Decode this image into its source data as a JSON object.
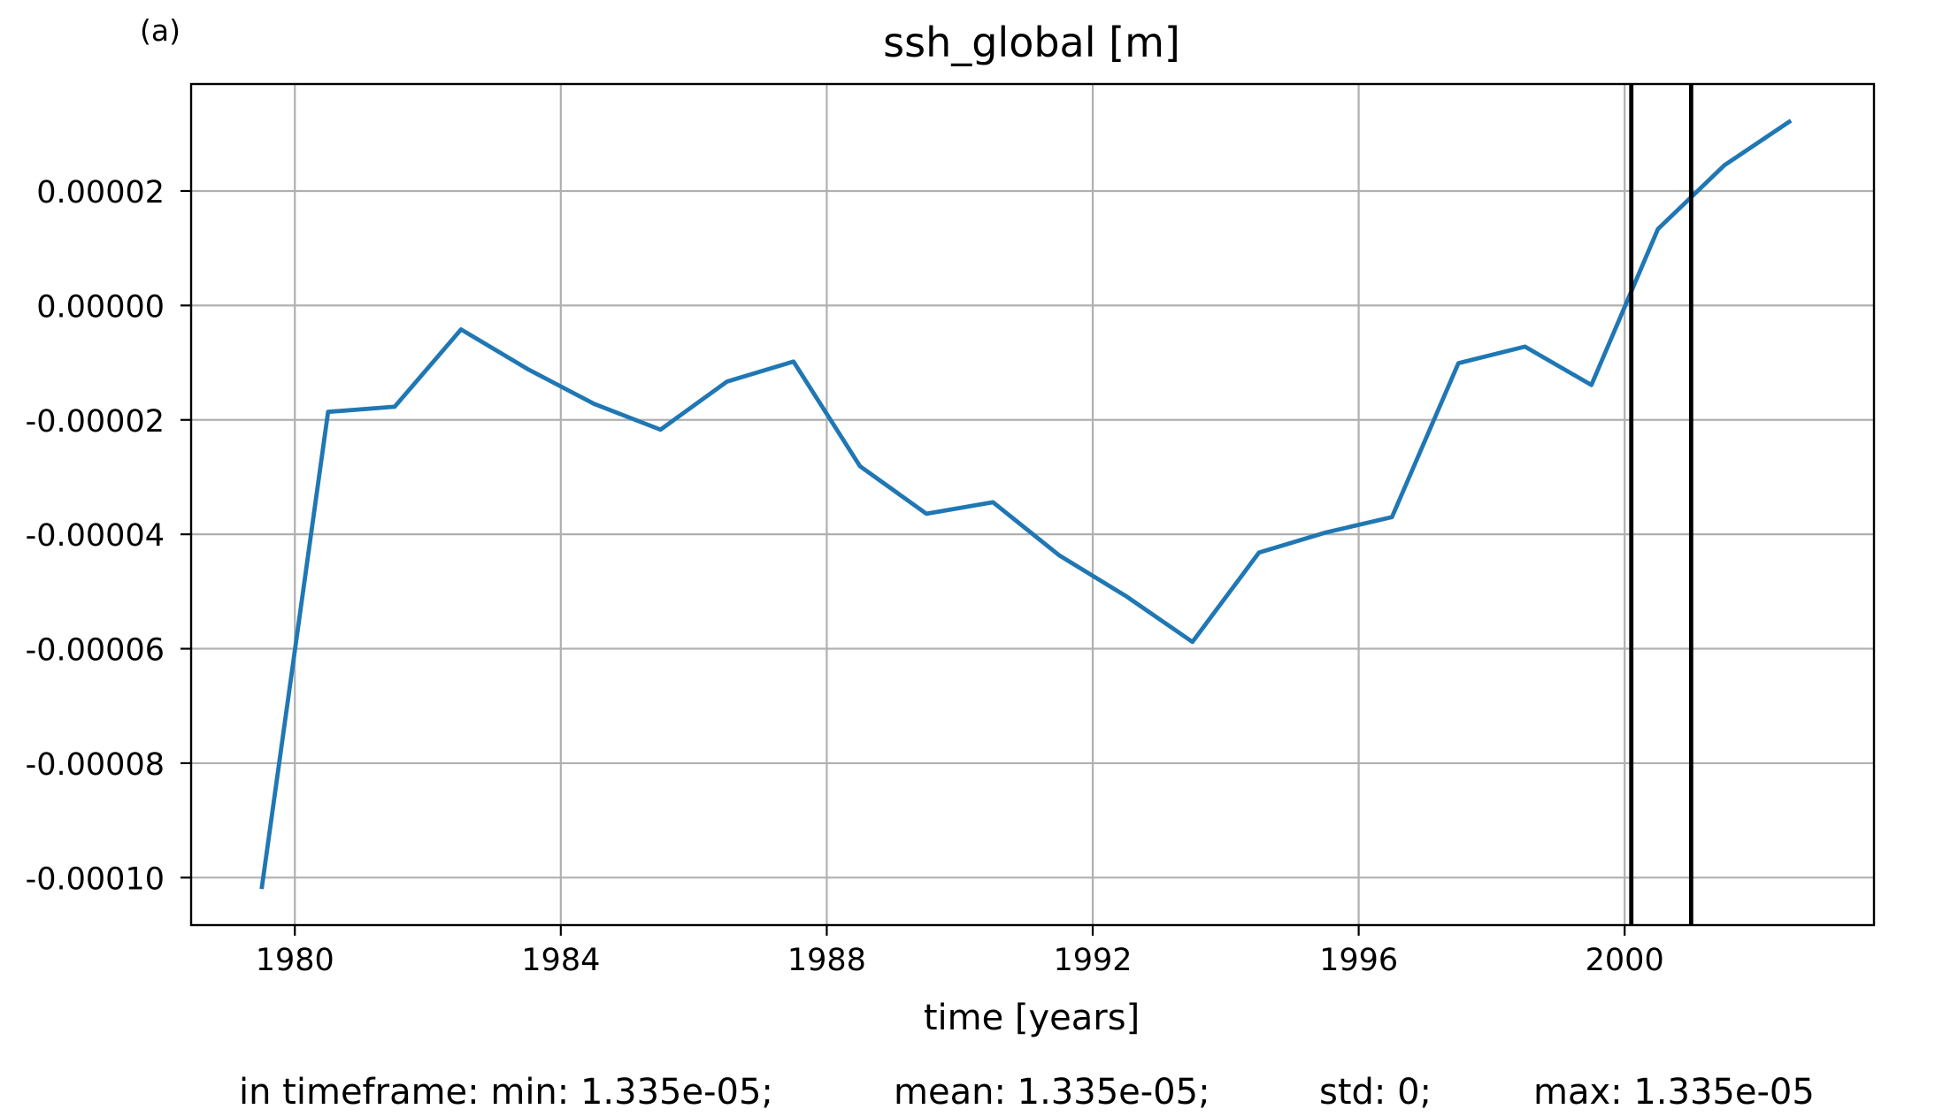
{
  "panel_label": "(a)",
  "chart_data": {
    "type": "line",
    "title": "ssh_global [m]",
    "xlabel": "time [years]",
    "ylabel": "",
    "xlim": [
      1978.44,
      2003.75
    ],
    "ylim": [
      -0.0001083,
      3.87e-05
    ],
    "grid": true,
    "x_ticks": [
      1980,
      1984,
      1988,
      1992,
      1996,
      2000
    ],
    "x_tick_labels": [
      "1980",
      "1984",
      "1988",
      "1992",
      "1996",
      "2000"
    ],
    "y_ticks": [
      -0.0001,
      -8e-05,
      -6e-05,
      -4e-05,
      -2e-05,
      0.0,
      2e-05
    ],
    "y_tick_labels": [
      "-0.00010",
      "-0.00008",
      "-0.00006",
      "-0.00004",
      "-0.00002",
      "0.00000",
      "0.00002"
    ],
    "series": [
      {
        "color": "#1f77b4",
        "x": [
          1979.5,
          1980.5,
          1981.5,
          1982.5,
          1983.5,
          1984.5,
          1985.5,
          1986.5,
          1987.5,
          1988.5,
          1989.5,
          1990.5,
          1991.5,
          1992.5,
          1993.5,
          1994.5,
          1995.5,
          1996.5,
          1997.5,
          1998.5,
          1999.5,
          2000.5,
          2001.5,
          2002.5
        ],
        "y": [
          -0.000102,
          -1.86e-05,
          -1.77e-05,
          -4.2e-06,
          -1.11e-05,
          -1.72e-05,
          -2.17e-05,
          -1.33e-05,
          -9.8e-06,
          -2.81e-05,
          -3.64e-05,
          -3.44e-05,
          -4.37e-05,
          -5.08e-05,
          -5.88e-05,
          -4.32e-05,
          -3.97e-05,
          -3.7e-05,
          -1.01e-05,
          -7.2e-06,
          -1.39e-05,
          1.335e-05,
          2.45e-05,
          3.23e-05
        ]
      }
    ],
    "vertical_lines": [
      2000.1,
      2001.0
    ],
    "vertical_line_color": "#000000"
  },
  "stats": {
    "prefix": "in timeframe: min: 1.335e-05;",
    "mean": "mean: 1.335e-05;",
    "std": "std: 0;",
    "max": "max: 1.335e-05"
  }
}
